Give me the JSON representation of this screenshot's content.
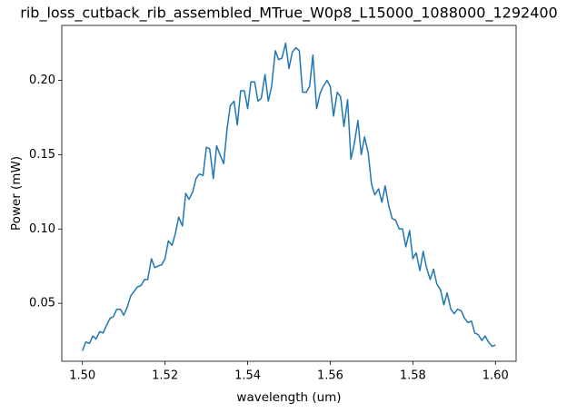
{
  "chart_data": {
    "type": "line",
    "title": "rib_loss_cutback_rib_assembled_MTrue_W0p8_L15000_1088000_1292400",
    "xlabel": "wavelength (um)",
    "ylabel": "Power (mW)",
    "xlim": [
      1.495,
      1.605
    ],
    "ylim": [
      0.011,
      0.237
    ],
    "xticks": [
      {
        "value": 1.5,
        "label": "1.50"
      },
      1.52,
      1.54,
      1.56,
      1.58,
      {
        "value": 1.6,
        "label": "1.60"
      }
    ],
    "yticks": [
      0.05,
      {
        "value": 0.1,
        "label": "0.10"
      },
      0.15,
      {
        "value": 0.2,
        "label": "0.20"
      }
    ],
    "grid": false,
    "x": [
      1.5,
      1.5008,
      1.5017,
      1.5025,
      1.5033,
      1.5042,
      1.505,
      1.5058,
      1.5067,
      1.5075,
      1.5083,
      1.5092,
      1.51,
      1.5108,
      1.5117,
      1.5125,
      1.5133,
      1.5142,
      1.515,
      1.5158,
      1.5167,
      1.5175,
      1.5183,
      1.5192,
      1.52,
      1.5208,
      1.5217,
      1.5225,
      1.5233,
      1.5242,
      1.525,
      1.5258,
      1.5267,
      1.5275,
      1.5283,
      1.5292,
      1.53,
      1.5308,
      1.5317,
      1.5325,
      1.5333,
      1.5342,
      1.535,
      1.5358,
      1.5367,
      1.5375,
      1.5383,
      1.5392,
      1.54,
      1.5408,
      1.5417,
      1.5425,
      1.5433,
      1.5442,
      1.545,
      1.5458,
      1.5467,
      1.5475,
      1.5483,
      1.5492,
      1.55,
      1.5508,
      1.5517,
      1.5525,
      1.5533,
      1.5542,
      1.555,
      1.5558,
      1.5567,
      1.5575,
      1.5583,
      1.5592,
      1.56,
      1.5608,
      1.5617,
      1.5625,
      1.5633,
      1.5642,
      1.565,
      1.5658,
      1.5667,
      1.5675,
      1.5683,
      1.5692,
      1.57,
      1.5708,
      1.5717,
      1.5725,
      1.5733,
      1.5742,
      1.575,
      1.5758,
      1.5767,
      1.5775,
      1.5783,
      1.5792,
      1.58,
      1.5808,
      1.5817,
      1.5825,
      1.5833,
      1.5842,
      1.585,
      1.5858,
      1.5867,
      1.5875,
      1.5883,
      1.5892,
      1.59,
      1.5908,
      1.5917,
      1.5925,
      1.5933,
      1.5942,
      1.595,
      1.5958,
      1.5967,
      1.5975,
      1.5983,
      1.5992,
      1.6
    ],
    "series": [
      {
        "name": "power",
        "color": "#1f77b4",
        "values": [
          0.018,
          0.024,
          0.023,
          0.028,
          0.026,
          0.031,
          0.03,
          0.035,
          0.04,
          0.041,
          0.046,
          0.046,
          0.042,
          0.047,
          0.055,
          0.058,
          0.061,
          0.062,
          0.066,
          0.066,
          0.08,
          0.074,
          0.075,
          0.076,
          0.08,
          0.092,
          0.089,
          0.097,
          0.108,
          0.102,
          0.124,
          0.12,
          0.125,
          0.134,
          0.137,
          0.136,
          0.155,
          0.154,
          0.134,
          0.156,
          0.15,
          0.144,
          0.167,
          0.183,
          0.186,
          0.17,
          0.193,
          0.193,
          0.181,
          0.199,
          0.199,
          0.186,
          0.188,
          0.204,
          0.186,
          0.196,
          0.22,
          0.214,
          0.215,
          0.225,
          0.208,
          0.219,
          0.222,
          0.22,
          0.192,
          0.192,
          0.196,
          0.217,
          0.181,
          0.191,
          0.196,
          0.2,
          0.196,
          0.176,
          0.192,
          0.189,
          0.169,
          0.187,
          0.147,
          0.157,
          0.173,
          0.15,
          0.162,
          0.151,
          0.13,
          0.123,
          0.127,
          0.118,
          0.129,
          0.115,
          0.107,
          0.106,
          0.1,
          0.1,
          0.088,
          0.099,
          0.08,
          0.084,
          0.072,
          0.085,
          0.074,
          0.066,
          0.073,
          0.063,
          0.059,
          0.049,
          0.057,
          0.046,
          0.043,
          0.046,
          0.045,
          0.04,
          0.037,
          0.038,
          0.03,
          0.029,
          0.025,
          0.028,
          0.024,
          0.021,
          0.022
        ]
      }
    ]
  }
}
